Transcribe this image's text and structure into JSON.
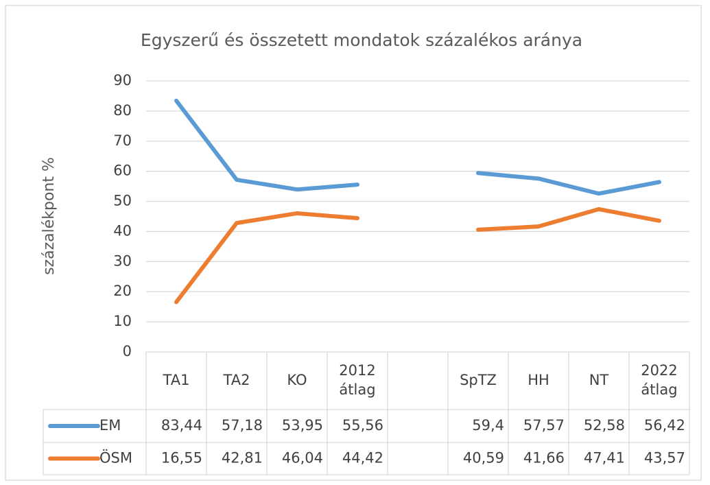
{
  "chart_data": {
    "type": "line",
    "title": "Egyszerű és összetett mondatok százalékos aránya",
    "y_label": "százalékpont %",
    "categories": [
      "TA1",
      "TA2",
      "KO",
      "2012 átlag",
      null,
      "SpTZ",
      "HH",
      "NT",
      "2022 átlag"
    ],
    "series": [
      {
        "name": "EM",
        "color": "#5b9bd5",
        "values": [
          83.44,
          57.18,
          53.95,
          55.56,
          null,
          59.4,
          57.57,
          52.58,
          56.42
        ],
        "value_labels": [
          "83,44",
          "57,18",
          "53,95",
          "55,56",
          null,
          "59,4",
          "57,57",
          "52,58",
          "56,42"
        ]
      },
      {
        "name": "ÖSM",
        "color": "#ed7d31",
        "values": [
          16.55,
          42.81,
          46.04,
          44.42,
          null,
          40.59,
          41.66,
          47.41,
          43.57
        ],
        "value_labels": [
          "16,55",
          "42,81",
          "46,04",
          "44,42",
          null,
          "40,59",
          "41,66",
          "47,41",
          "43,57"
        ]
      }
    ],
    "ylim": [
      0,
      90
    ],
    "yticks": [
      0,
      10,
      20,
      30,
      40,
      50,
      60,
      70,
      80,
      90
    ],
    "grid": true
  }
}
